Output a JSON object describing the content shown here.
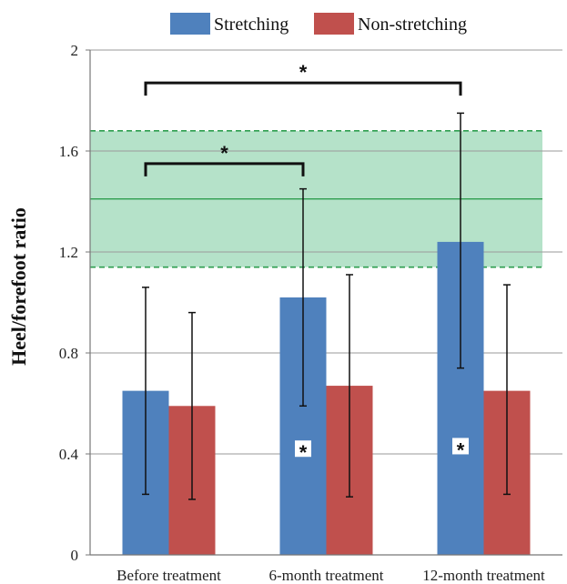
{
  "chart_data": {
    "type": "bar",
    "title": "",
    "xlabel": "",
    "ylabel": "Heel/forefoot ratio",
    "ylim": [
      0,
      2
    ],
    "yticks": [
      "0",
      "0.4",
      "0.8",
      "1.2",
      "1.6",
      "2"
    ],
    "ytick_values": [
      0,
      0.4,
      0.8,
      1.2,
      1.6,
      2.0
    ],
    "categories": [
      "Before treatment",
      "6-month treatment",
      "12-month treatment"
    ],
    "series": [
      {
        "name": "Stretching",
        "color": "#4f81bd",
        "values": [
          0.65,
          1.02,
          1.24
        ],
        "err_low": [
          0.24,
          0.59,
          0.74
        ],
        "err_high": [
          1.06,
          1.45,
          1.75
        ]
      },
      {
        "name": "Non-stretching",
        "color": "#c0504d",
        "values": [
          0.59,
          0.67,
          0.65
        ],
        "err_low": [
          0.22,
          0.23,
          0.24
        ],
        "err_high": [
          0.96,
          1.11,
          1.07
        ]
      }
    ],
    "legend_position": "top",
    "grid": true,
    "normal_range": {
      "low": 1.14,
      "high": 1.68,
      "mean": 1.41,
      "color": "#3cb371"
    },
    "significance_brackets": [
      {
        "from": 0,
        "to": 1,
        "y": 1.55,
        "label": "*"
      },
      {
        "from": 0,
        "to": 2,
        "y": 1.87,
        "label": "*"
      }
    ],
    "bar_markers": [
      {
        "category": 1,
        "value": 0.41,
        "label": "*"
      },
      {
        "category": 2,
        "value": 0.42,
        "label": "*"
      }
    ]
  }
}
